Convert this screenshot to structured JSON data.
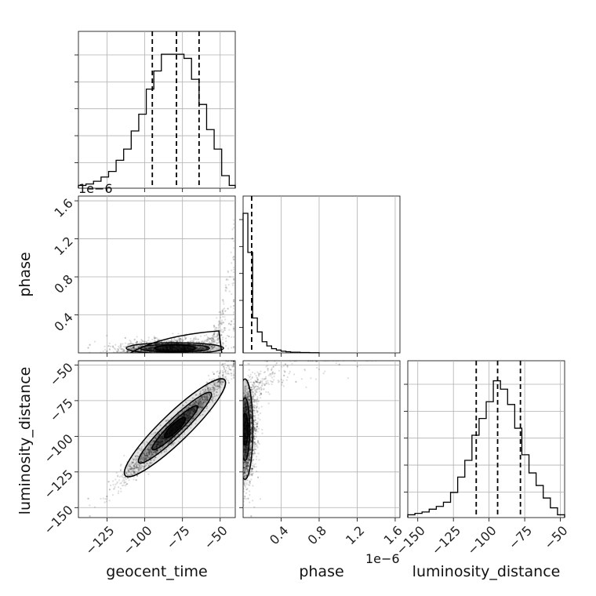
{
  "figure": {
    "offset_text": "1e−6"
  },
  "chart_data": {
    "type": "corner",
    "parameters": [
      "geocent_time",
      "phase",
      "luminosity_distance"
    ],
    "ranges": {
      "geocent_time": [
        -144,
        -40
      ],
      "phase": [
        0,
        1.65e-06
      ],
      "luminosity_distance": [
        -157,
        -47
      ]
    },
    "ticks": {
      "geocent_time": [
        -125,
        -100,
        -75,
        -50
      ],
      "phase": [
        4e-07,
        8e-07,
        1.2e-06,
        1.6e-06
      ],
      "luminosity_distance": [
        -150,
        -125,
        -100,
        -75,
        -50
      ]
    },
    "tick_labels": {
      "geocent_time": [
        "−125",
        "−100",
        "−75",
        "−50"
      ],
      "phase": [
        "0.4",
        "0.8",
        "1.2",
        "1.6"
      ],
      "luminosity_distance": [
        "−150",
        "−125",
        "−100",
        "−75",
        "−50"
      ]
    },
    "quantile_lines": {
      "geocent_time": [
        -95,
        -79,
        -64
      ],
      "phase": [
        9e-08
      ],
      "luminosity_distance": [
        -109,
        -94,
        -78
      ]
    },
    "histograms": {
      "geocent_time": {
        "edges": [
          -144,
          -139,
          -134,
          -129,
          -124,
          -119,
          -114,
          -109,
          -104,
          -99,
          -94,
          -89,
          -84,
          -79,
          -74,
          -69,
          -64,
          -59,
          -54,
          -49,
          -44,
          -40
        ],
        "counts": [
          0.02,
          0.03,
          0.05,
          0.08,
          0.12,
          0.2,
          0.28,
          0.41,
          0.53,
          0.71,
          0.84,
          0.96,
          0.96,
          0.96,
          0.93,
          0.78,
          0.6,
          0.42,
          0.28,
          0.09,
          0.02
        ]
      },
      "phase": {
        "edges": [
          0,
          5e-08,
          1e-07,
          1.5e-07,
          2e-07,
          2.5e-07,
          3e-07,
          3.5e-07,
          4e-07,
          4.5e-07,
          5e-07,
          6e-07,
          7e-07,
          8e-07
        ],
        "counts": [
          1.0,
          0.72,
          0.25,
          0.15,
          0.08,
          0.05,
          0.03,
          0.02,
          0.012,
          0.008,
          0.005,
          0.003,
          0.001
        ]
      },
      "luminosity_distance": {
        "edges": [
          -157,
          -152,
          -147,
          -142,
          -137,
          -132,
          -127,
          -122,
          -117,
          -112,
          -107,
          -102,
          -97,
          -92,
          -87,
          -82,
          -77,
          -72,
          -67,
          -62,
          -57,
          -52,
          -47
        ],
        "counts": [
          0.02,
          0.03,
          0.04,
          0.06,
          0.08,
          0.11,
          0.18,
          0.29,
          0.41,
          0.59,
          0.71,
          0.83,
          0.98,
          0.92,
          0.81,
          0.64,
          0.45,
          0.32,
          0.23,
          0.14,
          0.07,
          0.02
        ]
      }
    },
    "grid": true,
    "colors": {
      "line": "#000000",
      "scatter": "#000000",
      "grid": "#b0b0b0"
    }
  }
}
